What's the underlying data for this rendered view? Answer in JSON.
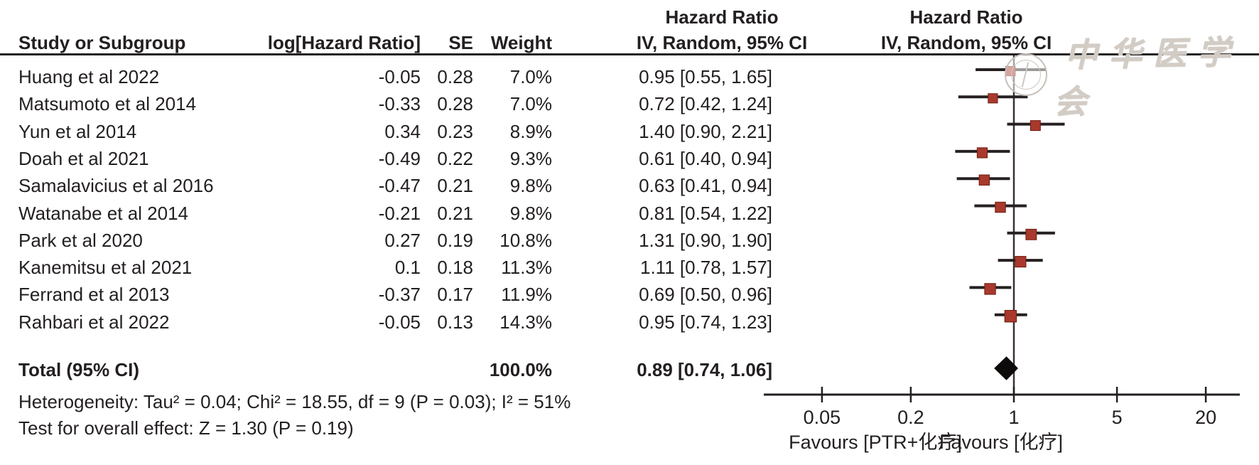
{
  "figure": {
    "columns": {
      "study": "Study or Subgroup",
      "loghr": "log[Hazard Ratio]",
      "se": "SE",
      "weight": "Weight",
      "effect_line1": "Hazard Ratio",
      "effect_line2": "IV, Random, 95% CI",
      "plot_line1": "Hazard Ratio",
      "plot_line2": "IV, Random, 95% CI"
    },
    "total": {
      "label": "Total (95% CI)",
      "weight": "100.0%",
      "ci_text": "0.89 [0.74, 1.06]"
    },
    "heterogeneity": "Heterogeneity: Tau² = 0.04; Chi² = 18.55, df = 9 (P = 0.03); I² = 51%",
    "overall_effect": "Test for overall effect: Z = 1.30 (P = 0.19)",
    "watermark": "中华医学会"
  },
  "chart_data": {
    "type": "forest",
    "effect_measure": "Hazard Ratio",
    "model": "IV, Random, 95% CI",
    "studies": [
      {
        "name": "Huang et al 2022",
        "log_hr": "-0.05",
        "se": "0.28",
        "weight": "7.0%",
        "weight_pct": 7.0,
        "hr": 0.95,
        "ci_low": 0.55,
        "ci_high": 1.65,
        "ci_text": "0.95 [0.55, 1.65]"
      },
      {
        "name": "Matsumoto et al 2014",
        "log_hr": "-0.33",
        "se": "0.28",
        "weight": "7.0%",
        "weight_pct": 7.0,
        "hr": 0.72,
        "ci_low": 0.42,
        "ci_high": 1.24,
        "ci_text": "0.72 [0.42, 1.24]"
      },
      {
        "name": "Yun et al 2014",
        "log_hr": "0.34",
        "se": "0.23",
        "weight": "8.9%",
        "weight_pct": 8.9,
        "hr": 1.4,
        "ci_low": 0.9,
        "ci_high": 2.21,
        "ci_text": "1.40 [0.90, 2.21]"
      },
      {
        "name": "Doah et al 2021",
        "log_hr": "-0.49",
        "se": "0.22",
        "weight": "9.3%",
        "weight_pct": 9.3,
        "hr": 0.61,
        "ci_low": 0.4,
        "ci_high": 0.94,
        "ci_text": "0.61 [0.40, 0.94]"
      },
      {
        "name": "Samalavicius et al 2016",
        "log_hr": "-0.47",
        "se": "0.21",
        "weight": "9.8%",
        "weight_pct": 9.8,
        "hr": 0.63,
        "ci_low": 0.41,
        "ci_high": 0.94,
        "ci_text": "0.63 [0.41, 0.94]"
      },
      {
        "name": "Watanabe et al 2014",
        "log_hr": "-0.21",
        "se": "0.21",
        "weight": "9.8%",
        "weight_pct": 9.8,
        "hr": 0.81,
        "ci_low": 0.54,
        "ci_high": 1.22,
        "ci_text": "0.81 [0.54, 1.22]"
      },
      {
        "name": "Park et al 2020",
        "log_hr": "0.27",
        "se": "0.19",
        "weight": "10.8%",
        "weight_pct": 10.8,
        "hr": 1.31,
        "ci_low": 0.9,
        "ci_high": 1.9,
        "ci_text": "1.31 [0.90, 1.90]"
      },
      {
        "name": "Kanemitsu et al 2021",
        "log_hr": "0.1",
        "se": "0.18",
        "weight": "11.3%",
        "weight_pct": 11.3,
        "hr": 1.11,
        "ci_low": 0.78,
        "ci_high": 1.57,
        "ci_text": "1.11 [0.78, 1.57]"
      },
      {
        "name": "Ferrand et al 2013",
        "log_hr": "-0.37",
        "se": "0.17",
        "weight": "11.9%",
        "weight_pct": 11.9,
        "hr": 0.69,
        "ci_low": 0.5,
        "ci_high": 0.96,
        "ci_text": "0.69 [0.50, 0.96]"
      },
      {
        "name": "Rahbari et al 2022",
        "log_hr": "-0.05",
        "se": "0.13",
        "weight": "14.3%",
        "weight_pct": 14.3,
        "hr": 0.95,
        "ci_low": 0.74,
        "ci_high": 1.23,
        "ci_text": "0.95 [0.74, 1.23]"
      }
    ],
    "total": {
      "hr": 0.89,
      "ci_low": 0.74,
      "ci_high": 1.06,
      "weight_pct": 100.0
    },
    "x_scale": "log",
    "x_ticks": [
      "0.05",
      "0.2",
      "1",
      "5",
      "20"
    ],
    "xlim": [
      0.02,
      34
    ],
    "null_line": 1,
    "favours_left": "Favours [PTR+化疗]",
    "favours_right": "Favours [化疗]",
    "heterogeneity": {
      "tau2": 0.04,
      "chi2": 18.55,
      "df": 9,
      "p": 0.03,
      "i2": "51%"
    },
    "overall_effect": {
      "z": 1.3,
      "p": 0.19
    },
    "marker_color": "#a9392c",
    "marker_edge_color": "#6b1d12",
    "line_color": "#231f20",
    "diamond_color": "#0d0a0a"
  }
}
